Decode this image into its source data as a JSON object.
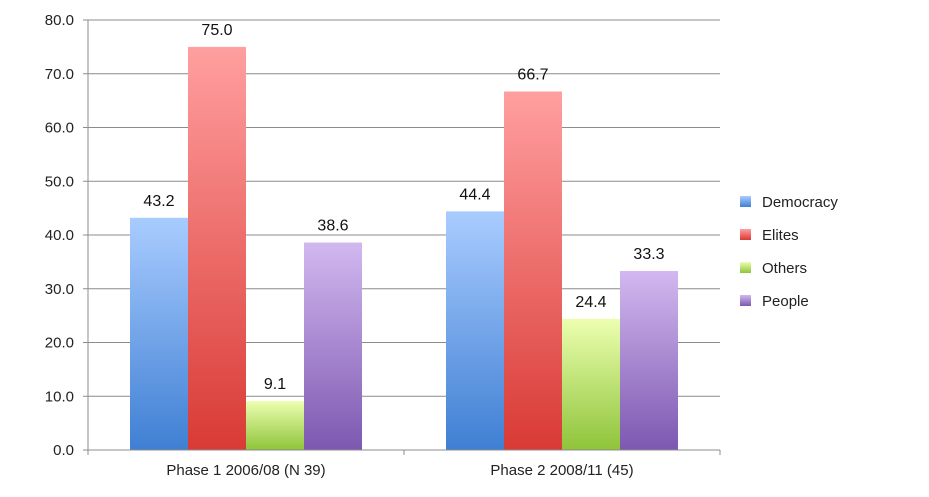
{
  "chart_data": {
    "type": "bar",
    "title": "",
    "xlabel": "",
    "ylabel": "",
    "ylim": [
      0,
      80
    ],
    "yticks": [
      "0.0",
      "10.0",
      "20.0",
      "30.0",
      "40.0",
      "50.0",
      "60.0",
      "70.0",
      "80.0"
    ],
    "grid": true,
    "legend_position": "right",
    "categories": [
      "Phase 1 2006/08 (N 39)",
      "Phase 2 2008/11 (45)"
    ],
    "series": [
      {
        "name": "Democracy",
        "values": [
          43.2,
          44.4
        ],
        "labels": [
          "43.2",
          "44.4"
        ],
        "color_top": "#a9ccff",
        "color_bottom": "#3f7fd3"
      },
      {
        "name": "Elites",
        "values": [
          75.0,
          66.7
        ],
        "labels": [
          "75.0",
          "66.7"
        ],
        "color_top": "#ff9f9f",
        "color_bottom": "#d93a35"
      },
      {
        "name": "Others",
        "values": [
          9.1,
          24.4
        ],
        "labels": [
          "9.1",
          "24.4"
        ],
        "color_top": "#ecffb0",
        "color_bottom": "#8fc43a"
      },
      {
        "name": "People",
        "values": [
          38.6,
          33.3
        ],
        "labels": [
          "38.6",
          "33.3"
        ],
        "color_top": "#d2b8f0",
        "color_bottom": "#7d58b0"
      }
    ]
  }
}
